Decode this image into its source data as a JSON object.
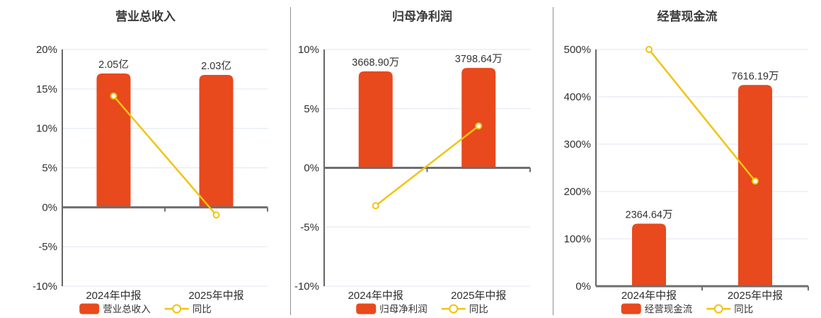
{
  "page": {
    "background": "#ffffff"
  },
  "colors": {
    "bar": "#e8491d",
    "line": "#f1c40f",
    "marker_fill": "#ffffff",
    "grid": "#dfe5f0",
    "zero_axis": "#6e6e6e",
    "y_axis": "#666666",
    "divider": "#8f8f8f",
    "tick_text": "#2f2f2f",
    "value_text": "#333333",
    "title_text": "#3b3b3b"
  },
  "chart_data": [
    {
      "type": "bar",
      "title": "营业总收入",
      "categories": [
        "2024年中报",
        "2025年中报"
      ],
      "bar_series": {
        "name": "营业总收入",
        "value_labels": [
          "2.05亿",
          "2.03亿"
        ],
        "values": [
          2.05,
          2.03
        ],
        "unit": "亿",
        "bar_top_axis_pct": [
          16.95,
          16.78
        ]
      },
      "line_series": {
        "name": "同比",
        "values_pct": [
          14.1,
          -0.98
        ]
      },
      "ylim": [
        -10,
        20
      ],
      "yticks": [
        20,
        15,
        10,
        5,
        0,
        -5,
        -10
      ],
      "ytick_labels": [
        "20%",
        "15%",
        "10%",
        "5%",
        "0%",
        "-5%",
        "-10%"
      ],
      "grid": true,
      "legend_position": "bottom",
      "legend": [
        "营业总收入",
        "同比"
      ]
    },
    {
      "type": "bar",
      "title": "归母净利润",
      "categories": [
        "2024年中报",
        "2025年中报"
      ],
      "bar_series": {
        "name": "归母净利润",
        "value_labels": [
          "3668.90万",
          "3798.64万"
        ],
        "values": [
          3668.9,
          3798.64
        ],
        "unit": "万",
        "bar_top_axis_pct": [
          8.15,
          8.44
        ]
      },
      "line_series": {
        "name": "同比",
        "values_pct": [
          -3.2,
          3.54
        ]
      },
      "ylim": [
        -10,
        10
      ],
      "yticks": [
        10,
        5,
        0,
        -5,
        -10
      ],
      "ytick_labels": [
        "10%",
        "5%",
        "0%",
        "-5%",
        "-10%"
      ],
      "grid": true,
      "legend_position": "bottom",
      "legend": [
        "归母净利润",
        "同比"
      ]
    },
    {
      "type": "bar",
      "title": "经营现金流",
      "categories": [
        "2024年中报",
        "2025年中报"
      ],
      "bar_series": {
        "name": "经营现金流",
        "value_labels": [
          "2364.64万",
          "7616.19万"
        ],
        "values": [
          2364.64,
          7616.19
        ],
        "unit": "万",
        "bar_top_axis_pct": [
          132,
          425
        ]
      },
      "line_series": {
        "name": "同比",
        "values_pct": [
          500,
          222.1
        ]
      },
      "ylim": [
        0,
        500
      ],
      "yticks": [
        500,
        400,
        300,
        200,
        100,
        0
      ],
      "ytick_labels": [
        "500%",
        "400%",
        "300%",
        "200%",
        "100%",
        "0%"
      ],
      "grid": true,
      "legend_position": "bottom",
      "legend": [
        "经营现金流",
        "同比"
      ]
    }
  ]
}
